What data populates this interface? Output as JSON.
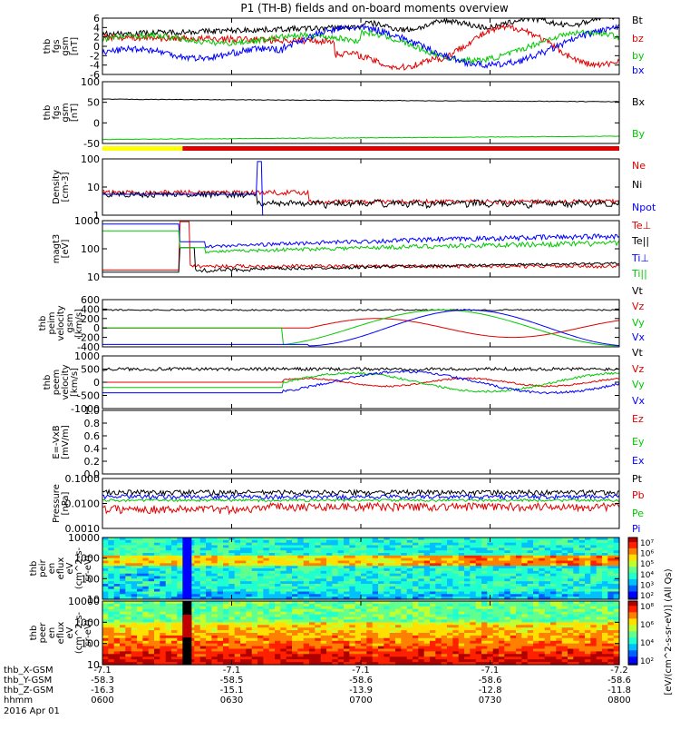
{
  "title": "P1 (TH-B) fields and on-board moments overview",
  "colors": {
    "black": "#000000",
    "red": "#e00000",
    "green": "#00c800",
    "blue": "#0000ff",
    "yellow": "#ffff00",
    "bar_red": "#e00000"
  },
  "chart_data": [
    {
      "type": "line",
      "ylabel": [
        "thb",
        "fgs",
        "gsm",
        "[nT]"
      ],
      "yticks": [
        "6",
        "4",
        "2",
        "0",
        "-2",
        "-4",
        "-6"
      ],
      "ylim": [
        -6,
        6
      ],
      "series": [
        {
          "name": "Bt",
          "color": "black"
        },
        {
          "name": "bz",
          "color": "red"
        },
        {
          "name": "by",
          "color": "green"
        },
        {
          "name": "bx",
          "color": "blue"
        }
      ]
    },
    {
      "type": "line",
      "ylabel": [
        "thb",
        "fgs",
        "gsm",
        "[nT]"
      ],
      "yticks": [
        "100",
        "50",
        "0",
        "-50"
      ],
      "ylim": [
        -70,
        100
      ],
      "series": [
        {
          "name": "Bx",
          "color": "black",
          "values": [
            52,
            52,
            51,
            50,
            48,
            45
          ]
        },
        {
          "name": "By",
          "color": "green",
          "values": [
            -59,
            -58,
            -56,
            -54,
            -52,
            -50
          ]
        }
      ]
    },
    {
      "type": "line",
      "ylabel": [
        "Density",
        "[cm-3]"
      ],
      "yticks": [
        "100",
        "10",
        "1"
      ],
      "scale": "log",
      "ylim": [
        0.4,
        200
      ],
      "series": [
        {
          "name": "Ne",
          "color": "red"
        },
        {
          "name": "Ni",
          "color": "black"
        },
        {
          "name": "Npot",
          "color": "blue"
        }
      ]
    },
    {
      "type": "line",
      "ylabel": [
        "magt3",
        "[eV]"
      ],
      "yticks": [
        "1000",
        "100",
        "10"
      ],
      "scale": "log",
      "ylim": [
        10,
        1200
      ],
      "series": [
        {
          "name": "Te⊥",
          "color": "red"
        },
        {
          "name": "Te||",
          "color": "black"
        },
        {
          "name": "Ti⊥",
          "color": "blue"
        },
        {
          "name": "Ti||",
          "color": "green"
        }
      ]
    },
    {
      "type": "line",
      "ylabel": [
        "thb",
        "peim",
        "velocity",
        "gsm",
        "[km/s]"
      ],
      "yticks": [
        "600",
        "400",
        "200",
        "0",
        "-200",
        "-400"
      ],
      "ylim": [
        -400,
        600
      ],
      "series": [
        {
          "name": "Vt",
          "color": "black"
        },
        {
          "name": "Vz",
          "color": "red"
        },
        {
          "name": "Vy",
          "color": "green"
        },
        {
          "name": "Vx",
          "color": "blue"
        }
      ]
    },
    {
      "type": "line",
      "ylabel": [
        "thb",
        "peem",
        "velocity",
        "[km/s]"
      ],
      "yticks": [
        "1000",
        "500",
        "0",
        "-500",
        "-1000"
      ],
      "ylim": [
        -1000,
        1000
      ],
      "series": [
        {
          "name": "Vt",
          "color": "black"
        },
        {
          "name": "Vz",
          "color": "red"
        },
        {
          "name": "Vy",
          "color": "green"
        },
        {
          "name": "Vx",
          "color": "blue"
        }
      ]
    },
    {
      "type": "line",
      "ylabel": [
        "E=-VxB",
        "[mV/m]"
      ],
      "yticks": [
        "1.0",
        "0.8",
        "0.6",
        "0.4",
        "0.2",
        "0.0"
      ],
      "ylim": [
        0,
        1
      ],
      "series": [
        {
          "name": "Ez",
          "color": "red"
        },
        {
          "name": "Ey",
          "color": "green"
        },
        {
          "name": "Ex",
          "color": "blue"
        }
      ]
    },
    {
      "type": "line",
      "ylabel": [
        "Pressure",
        "[nPa]"
      ],
      "yticks": [
        "0.1000",
        "0.0100",
        "0.0010"
      ],
      "scale": "log",
      "ylim": [
        0.0003,
        0.1
      ],
      "series": [
        {
          "name": "Pt",
          "color": "black"
        },
        {
          "name": "Pb",
          "color": "red"
        },
        {
          "name": "Pe",
          "color": "green"
        },
        {
          "name": "Pi",
          "color": "blue"
        }
      ]
    },
    {
      "type": "heatmap",
      "ylabel": [
        "thb",
        "peir",
        "en",
        "eflux",
        "eV",
        "(cm^2-s-",
        "sr-eV)"
      ],
      "yticks": [
        "10000",
        "1000",
        "100",
        "10"
      ],
      "scale": "log",
      "ylim": [
        5,
        20000
      ],
      "colorbar_ticks": [
        "10⁷",
        "10⁶",
        "10⁵",
        "10⁴",
        "10³",
        "10²"
      ]
    },
    {
      "type": "heatmap",
      "ylabel": [
        "thb",
        "peer",
        "en",
        "eflux",
        "eV",
        "(cm^2-s-",
        "sr-eV)"
      ],
      "yticks": [
        "10000",
        "1000",
        "100",
        "10"
      ],
      "scale": "log",
      "ylim": [
        5,
        20000
      ],
      "colorbar_ticks": [
        "10⁸",
        "10⁶",
        "10⁴",
        "10²"
      ]
    }
  ],
  "colorbar_label": "[eV/(cm^2-s-sr-eV)] (All Qs)",
  "xaxis": {
    "row_labels": [
      "thb_X-GSM",
      "thb_Y-GSM",
      "thb_Z-GSM",
      "hhmm",
      "2016 Apr 01"
    ],
    "columns": [
      {
        "x": "-7.1",
        "y": "-58.3",
        "z": "-16.3",
        "t": "0600"
      },
      {
        "x": "-7.1",
        "y": "-58.5",
        "z": "-15.1",
        "t": "0630"
      },
      {
        "x": "-7.1",
        "y": "-58.6",
        "z": "-13.9",
        "t": "0700"
      },
      {
        "x": "-7.1",
        "y": "-58.6",
        "z": "-12.8",
        "t": "0730"
      },
      {
        "x": "-7.2",
        "y": "-58.6",
        "z": "-11.8",
        "t": "0800"
      }
    ]
  }
}
